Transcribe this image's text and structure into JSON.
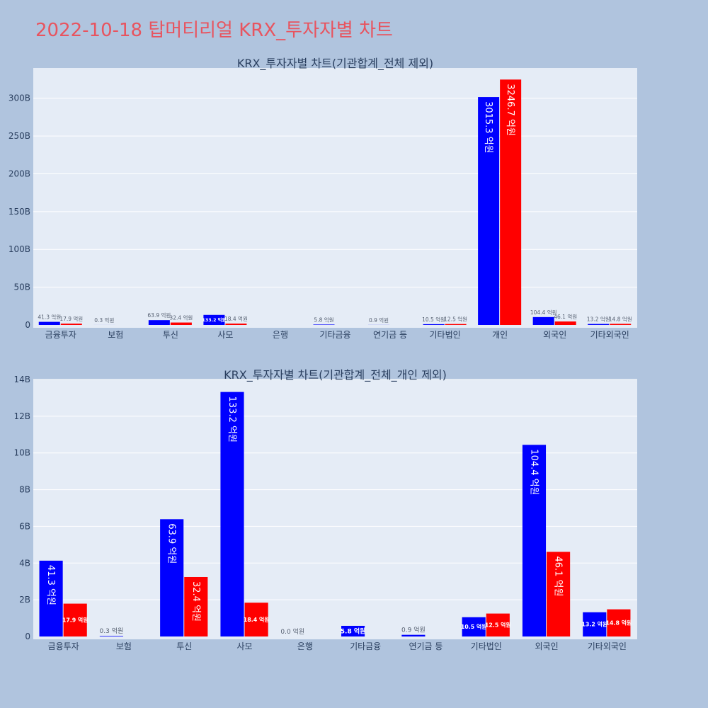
{
  "page": {
    "title": "2022-10-18 탑머티리얼 KRX_투자자별 차트",
    "colors": {
      "background": "#b0c4de",
      "plot_bg": "#e5ecf6",
      "series1": "#0000ff",
      "series2": "#ff0000",
      "title": "#e8545f",
      "text": "#2a3f5f"
    }
  },
  "chart_data": [
    {
      "type": "bar",
      "title": "KRX_투자자별 차트(기관합계_전체 제외)",
      "xlabel": "",
      "ylabel": "",
      "ylim": [
        0,
        34
      ],
      "yticks": [
        0,
        5,
        10,
        15,
        20,
        25,
        30
      ],
      "ytick_labels": [
        "0",
        "50B",
        "100B",
        "150B",
        "200B",
        "250B",
        "300B"
      ],
      "grid": true,
      "categories": [
        "금융투자",
        "보험",
        "투신",
        "사모",
        "은행",
        "기타금융",
        "연기금 등",
        "기타법인",
        "개인",
        "외국인",
        "기타외국인"
      ],
      "series": [
        {
          "values": [
            0.413,
            0.003,
            0.639,
            1.332,
            null,
            0.058,
            0.009,
            0.105,
            30.153,
            1.044,
            0.132
          ],
          "labels": [
            "41.3 억원",
            "0.3 억원",
            "63.9 억원",
            "133.2 억원",
            "",
            "5.8 억원",
            "0.9 억원",
            "10.5 억원",
            "3015.3 억원",
            "104.4 억원",
            "13.2 억원"
          ]
        },
        {
          "values": [
            0.179,
            null,
            0.324,
            0.184,
            null,
            null,
            null,
            0.125,
            32.467,
            0.461,
            0.148
          ],
          "labels": [
            "17.9 억원",
            "",
            "32.4 억원",
            "18.4 억원",
            "",
            "",
            "",
            "12.5 억원",
            "3246.7 억원",
            "46.1 억원",
            "14.8 억원"
          ]
        }
      ]
    },
    {
      "type": "bar",
      "title": "KRX_투자자별 차트(기관합계_전체_개인 제외)",
      "xlabel": "",
      "ylabel": "",
      "ylim": [
        0,
        14
      ],
      "yticks": [
        0,
        2,
        4,
        6,
        8,
        10,
        12,
        14
      ],
      "ytick_labels": [
        "0",
        "2B",
        "4B",
        "6B",
        "8B",
        "10B",
        "12B",
        "14B"
      ],
      "grid": true,
      "categories": [
        "금융투자",
        "보험",
        "투신",
        "사모",
        "은행",
        "기타금융",
        "연기금 등",
        "기타법인",
        "외국인",
        "기타외국인"
      ],
      "series": [
        {
          "values": [
            4.13,
            0.03,
            6.39,
            13.32,
            0.0,
            0.58,
            0.09,
            1.05,
            10.44,
            1.32
          ],
          "labels": [
            "41.3 억원",
            "0.3 억원",
            "63.9 억원",
            "133.2 억원",
            "0.0 억원",
            "5.8 억원",
            "0.9 억원",
            "10.5 억원",
            "104.4 억원",
            "13.2 억원"
          ]
        },
        {
          "values": [
            1.79,
            null,
            3.24,
            1.84,
            null,
            null,
            null,
            1.25,
            4.61,
            1.48
          ],
          "labels": [
            "17.9 억원",
            "",
            "32.4 억원",
            "18.4 억원",
            "",
            "",
            "",
            "12.5 억원",
            "46.1 억원",
            "14.8 억원"
          ]
        }
      ]
    }
  ]
}
